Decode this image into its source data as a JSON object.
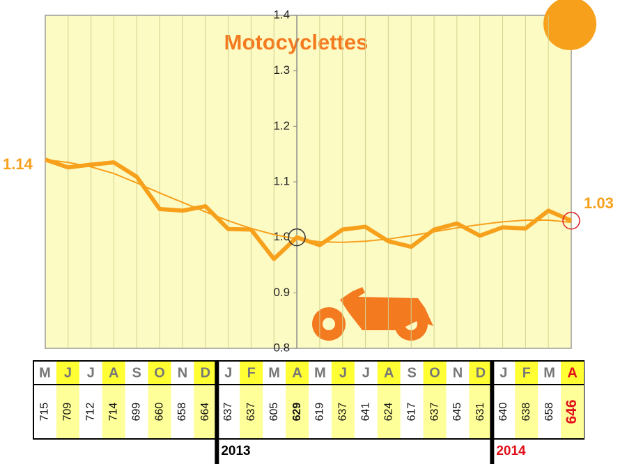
{
  "chart_data": {
    "type": "line",
    "title": "Motocyclettes",
    "categories": [
      "M",
      "J",
      "J",
      "A",
      "S",
      "O",
      "N",
      "D",
      "J",
      "F",
      "M",
      "A",
      "M",
      "J",
      "J",
      "A",
      "S",
      "O",
      "N",
      "D",
      "J",
      "F",
      "M",
      "A"
    ],
    "series": [
      {
        "color": "#f7a01c",
        "values": [
          1.14,
          1.126,
          1.131,
          1.135,
          1.109,
          1.051,
          1.048,
          1.056,
          1.015,
          1.014,
          0.961,
          1.0,
          0.986,
          1.014,
          1.019,
          0.993,
          0.983,
          1.014,
          1.025,
          1.003,
          1.018,
          1.016,
          1.048,
          1.03
        ]
      },
      {
        "color": "#f7a01c",
        "values": [
          1.14,
          1.135,
          1.127,
          1.115,
          1.098,
          1.08,
          1.063,
          1.046,
          1.03,
          1.016,
          1.005,
          0.997,
          0.992,
          0.991,
          0.993,
          0.997,
          1.003,
          1.01,
          1.017,
          1.023,
          1.028,
          1.031,
          1.031,
          1.027
        ]
      }
    ],
    "ylim": [
      0.8,
      1.4
    ],
    "yticks": [
      0.8,
      0.9,
      {
        "value": 1.0,
        "label": "1.0"
      },
      1.1,
      1.2,
      1.3,
      1.4
    ],
    "grid": true
  },
  "table": {
    "counts": [
      715,
      709,
      712,
      714,
      699,
      660,
      658,
      664,
      637,
      637,
      605,
      629,
      619,
      637,
      641,
      624,
      617,
      637,
      645,
      631,
      640,
      638,
      658,
      646
    ],
    "years": [
      "2013",
      "2014"
    ]
  }
}
